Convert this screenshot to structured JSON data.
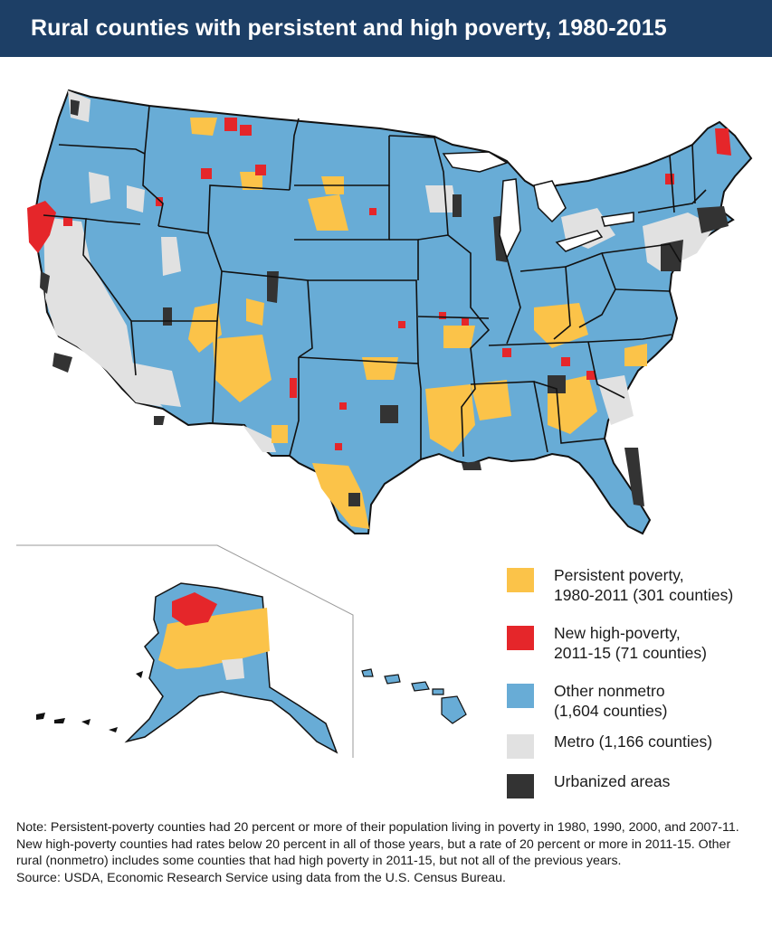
{
  "title": "Rural counties with persistent and high poverty, 1980-2015",
  "colors": {
    "title_bar": "#1d3f66",
    "persistent": "#fbc349",
    "new_high": "#e5262a",
    "nonmetro": "#68acd6",
    "metro": "#e1e1e1",
    "urbanized": "#333333",
    "state_border": "#111111"
  },
  "legend": [
    {
      "key": "persistent",
      "label": "Persistent poverty,\n1980-2011 (301 counties)",
      "color": "#fbc349"
    },
    {
      "key": "new_high",
      "label": "New high-poverty,\n2011-15 (71 counties)",
      "color": "#e5262a"
    },
    {
      "key": "nonmetro",
      "label": "Other nonmetro\n(1,604 counties)",
      "color": "#68acd6"
    },
    {
      "key": "metro",
      "label": "Metro (1,166 counties)",
      "color": "#e1e1e1"
    },
    {
      "key": "urbanized",
      "label": "Urbanized areas",
      "color": "#333333"
    }
  ],
  "note": "Note: Persistent-poverty counties had 20 percent or more of their population living in poverty in 1980, 1990, 2000, and 2007-11. New high-poverty counties had rates below 20 percent in all of those years, but a rate of 20 percent or more in 2011-15. Other rural (nonmetro) includes some counties that had high poverty in 2011-15, but not all of the previous years.",
  "source": "Source: USDA, Economic Research Service using data from the U.S. Census Bureau."
}
